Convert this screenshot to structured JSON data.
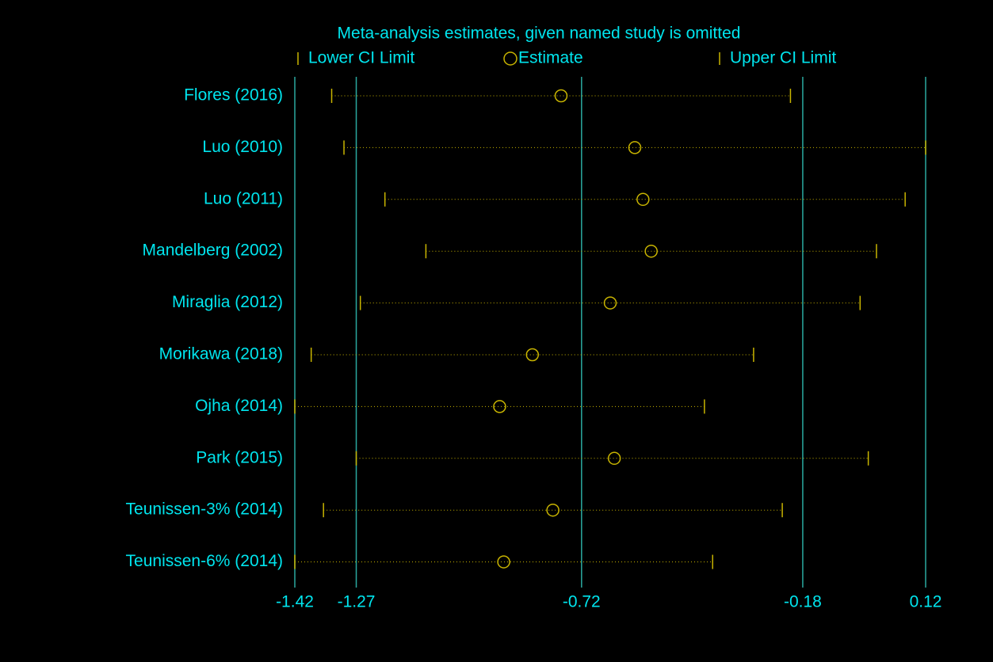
{
  "chart_data": {
    "type": "ci-dot",
    "title": "Meta-analysis estimates, given named study is omitted",
    "categories": [
      "Flores (2016)",
      "Luo (2010)",
      "Luo (2011)",
      "Mandelberg (2002)",
      "Miraglia (2012)",
      "Morikawa (2018)",
      "Ojha  (2014)",
      "Park (2015)",
      "Teunissen-3%  (2014)",
      "Teunissen-6% (2014)"
    ],
    "series": [
      {
        "name": "Lower CI Limit",
        "color": "#c8b400",
        "values": [
          -1.33,
          -1.3,
          -1.2,
          -1.1,
          -1.26,
          -1.38,
          -1.42,
          -1.27,
          -1.35,
          -1.42
        ]
      },
      {
        "name": "Estimate",
        "color": "#c8b400",
        "values": [
          -0.77,
          -0.59,
          -0.57,
          -0.55,
          -0.65,
          -0.84,
          -0.92,
          -0.64,
          -0.79,
          -0.91
        ]
      },
      {
        "name": "Upper CI Limit",
        "color": "#c8b400",
        "values": [
          -0.21,
          0.12,
          0.07,
          0.0,
          -0.04,
          -0.3,
          -0.42,
          -0.02,
          -0.23,
          -0.4
        ]
      }
    ],
    "xlim": [
      -1.42,
      0.12
    ],
    "xticks": [
      -1.42,
      -1.27,
      -0.72,
      -0.18,
      0.12
    ],
    "grid": true,
    "grid_color": "#2aa9a0",
    "text_color": "#00e5ee"
  }
}
